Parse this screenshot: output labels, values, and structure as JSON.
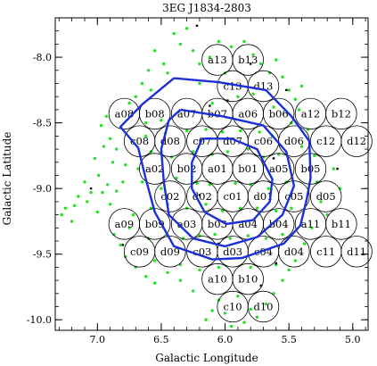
{
  "chart_data": {
    "type": "scatter",
    "title": "3EG J1834-2803",
    "xlabel": "Galactic Longitude",
    "ylabel": "Galactic Latitude",
    "x_reversed": true,
    "xlim": [
      7.33,
      4.88
    ],
    "ylim": [
      -10.08,
      -7.7
    ],
    "xticks": [
      7.0,
      6.5,
      6.0,
      5.5,
      5.0
    ],
    "yticks": [
      -8.0,
      -8.5,
      -9.0,
      -9.5,
      -10.0
    ],
    "xtick_labels": [
      "7.0",
      "6.5",
      "6.0",
      "5.5",
      "5.0"
    ],
    "ytick_labels": [
      "-8.0",
      "-8.5",
      "-9.0",
      "-9.5",
      "-10.0"
    ],
    "grid": false,
    "colors": {
      "fields": "#000000",
      "contours": "#1a2fd6",
      "sources": "#22e022",
      "frame": "#000000"
    },
    "fields": [
      {
        "name": "a13",
        "x": 6.06,
        "y": -8.02
      },
      {
        "name": "b13",
        "x": 5.82,
        "y": -8.02
      },
      {
        "name": "c13",
        "x": 5.94,
        "y": -8.22
      },
      {
        "name": "d13",
        "x": 5.7,
        "y": -8.22
      },
      {
        "name": "a08",
        "x": 6.79,
        "y": -8.43
      },
      {
        "name": "b08",
        "x": 6.55,
        "y": -8.43
      },
      {
        "name": "a07",
        "x": 6.3,
        "y": -8.43
      },
      {
        "name": "b07",
        "x": 6.06,
        "y": -8.43
      },
      {
        "name": "a06",
        "x": 5.82,
        "y": -8.43
      },
      {
        "name": "b06",
        "x": 5.58,
        "y": -8.43
      },
      {
        "name": "a12",
        "x": 5.33,
        "y": -8.43
      },
      {
        "name": "b12",
        "x": 5.09,
        "y": -8.43
      },
      {
        "name": "c08",
        "x": 6.67,
        "y": -8.64
      },
      {
        "name": "d08",
        "x": 6.43,
        "y": -8.64
      },
      {
        "name": "c07",
        "x": 6.18,
        "y": -8.64
      },
      {
        "name": "d07",
        "x": 5.94,
        "y": -8.64
      },
      {
        "name": "c06",
        "x": 5.7,
        "y": -8.64
      },
      {
        "name": "d06",
        "x": 5.46,
        "y": -8.64
      },
      {
        "name": "c12",
        "x": 5.21,
        "y": -8.64
      },
      {
        "name": "d12",
        "x": 4.97,
        "y": -8.64
      },
      {
        "name": "a02",
        "x": 6.55,
        "y": -8.85
      },
      {
        "name": "b02",
        "x": 6.3,
        "y": -8.85
      },
      {
        "name": "a01",
        "x": 6.06,
        "y": -8.85
      },
      {
        "name": "b01",
        "x": 5.82,
        "y": -8.85
      },
      {
        "name": "a05",
        "x": 5.58,
        "y": -8.85
      },
      {
        "name": "b05",
        "x": 5.33,
        "y": -8.85
      },
      {
        "name": "c02",
        "x": 6.43,
        "y": -9.06
      },
      {
        "name": "d02",
        "x": 6.18,
        "y": -9.06
      },
      {
        "name": "c01",
        "x": 5.94,
        "y": -9.06
      },
      {
        "name": "d01",
        "x": 5.7,
        "y": -9.06
      },
      {
        "name": "c05",
        "x": 5.46,
        "y": -9.06
      },
      {
        "name": "d05",
        "x": 5.21,
        "y": -9.06
      },
      {
        "name": "a09",
        "x": 6.79,
        "y": -9.27
      },
      {
        "name": "b09",
        "x": 6.55,
        "y": -9.27
      },
      {
        "name": "a03",
        "x": 6.3,
        "y": -9.27
      },
      {
        "name": "b03",
        "x": 6.06,
        "y": -9.27
      },
      {
        "name": "a04",
        "x": 5.82,
        "y": -9.27
      },
      {
        "name": "b04",
        "x": 5.58,
        "y": -9.27
      },
      {
        "name": "a11",
        "x": 5.33,
        "y": -9.27
      },
      {
        "name": "b11",
        "x": 5.09,
        "y": -9.27
      },
      {
        "name": "c09",
        "x": 6.67,
        "y": -9.48
      },
      {
        "name": "d09",
        "x": 6.43,
        "y": -9.48
      },
      {
        "name": "c03",
        "x": 6.18,
        "y": -9.48
      },
      {
        "name": "d03",
        "x": 5.94,
        "y": -9.48
      },
      {
        "name": "c04",
        "x": 5.7,
        "y": -9.48
      },
      {
        "name": "d04",
        "x": 5.46,
        "y": -9.48
      },
      {
        "name": "c11",
        "x": 5.21,
        "y": -9.48
      },
      {
        "name": "d11",
        "x": 4.97,
        "y": -9.48
      },
      {
        "name": "a10",
        "x": 6.06,
        "y": -9.69
      },
      {
        "name": "b10",
        "x": 5.82,
        "y": -9.69
      },
      {
        "name": "c10",
        "x": 5.94,
        "y": -9.9
      },
      {
        "name": "d10",
        "x": 5.7,
        "y": -9.9
      }
    ],
    "field_radius_deg": 0.121,
    "contours": [
      [
        [
          6.4,
          -8.16
        ],
        [
          6.05,
          -8.19
        ],
        [
          5.68,
          -8.25
        ],
        [
          5.48,
          -8.45
        ],
        [
          5.34,
          -8.64
        ],
        [
          5.33,
          -8.92
        ],
        [
          5.36,
          -9.08
        ],
        [
          5.41,
          -9.28
        ],
        [
          5.54,
          -9.42
        ],
        [
          5.87,
          -9.53
        ],
        [
          6.1,
          -9.54
        ],
        [
          6.4,
          -9.44
        ],
        [
          6.55,
          -9.18
        ],
        [
          6.62,
          -8.93
        ],
        [
          6.68,
          -8.69
        ],
        [
          6.82,
          -8.53
        ],
        [
          6.65,
          -8.36
        ],
        [
          6.4,
          -8.16
        ]
      ],
      [
        [
          6.35,
          -8.4
        ],
        [
          6.02,
          -8.45
        ],
        [
          5.7,
          -8.52
        ],
        [
          5.52,
          -8.72
        ],
        [
          5.46,
          -8.98
        ],
        [
          5.55,
          -9.2
        ],
        [
          5.75,
          -9.37
        ],
        [
          6.0,
          -9.44
        ],
        [
          6.25,
          -9.38
        ],
        [
          6.44,
          -9.2
        ],
        [
          6.48,
          -8.95
        ],
        [
          6.5,
          -8.7
        ],
        [
          6.44,
          -8.48
        ],
        [
          6.35,
          -8.4
        ]
      ],
      [
        [
          6.18,
          -8.62
        ],
        [
          5.95,
          -8.62
        ],
        [
          5.75,
          -8.7
        ],
        [
          5.63,
          -8.93
        ],
        [
          5.65,
          -9.1
        ],
        [
          5.78,
          -9.24
        ],
        [
          5.99,
          -9.27
        ],
        [
          6.16,
          -9.18
        ],
        [
          6.26,
          -9.0
        ],
        [
          6.26,
          -8.8
        ],
        [
          6.18,
          -8.62
        ]
      ]
    ],
    "sources": [
      [
        6.93,
        -8.45
      ],
      [
        6.97,
        -8.52
      ],
      [
        6.9,
        -8.62
      ],
      [
        6.88,
        -8.8
      ],
      [
        6.95,
        -8.68
      ],
      [
        7.02,
        -8.77
      ],
      [
        6.99,
        -8.9
      ],
      [
        7.1,
        -8.95
      ],
      [
        7.05,
        -9.03
      ],
      [
        7.15,
        -9.06
      ],
      [
        7.18,
        -9.13
      ],
      [
        7.25,
        -9.15
      ],
      [
        7.28,
        -9.2
      ],
      [
        7.2,
        -9.25
      ],
      [
        7.08,
        -9.1
      ],
      [
        6.96,
        -9.03
      ],
      [
        6.9,
        -9.12
      ],
      [
        6.85,
        -9.02
      ],
      [
        6.8,
        -8.95
      ],
      [
        6.92,
        -8.97
      ],
      [
        7.0,
        -9.18
      ],
      [
        6.87,
        -9.35
      ],
      [
        6.82,
        -9.43
      ],
      [
        6.78,
        -9.52
      ],
      [
        6.7,
        -9.6
      ],
      [
        6.62,
        -9.67
      ],
      [
        6.55,
        -9.72
      ],
      [
        6.45,
        -9.64
      ],
      [
        6.35,
        -9.7
      ],
      [
        6.25,
        -9.78
      ],
      [
        6.2,
        -9.62
      ],
      [
        6.1,
        -9.93
      ],
      [
        6.0,
        -9.95
      ],
      [
        5.85,
        -10.02
      ],
      [
        5.75,
        -9.98
      ],
      [
        5.68,
        -9.88
      ],
      [
        5.62,
        -9.8
      ],
      [
        5.55,
        -9.7
      ],
      [
        5.5,
        -9.62
      ],
      [
        5.9,
        -9.82
      ],
      [
        5.8,
        -9.92
      ],
      [
        6.05,
        -9.85
      ],
      [
        6.15,
        -10.0
      ],
      [
        5.95,
        -10.05
      ],
      [
        6.55,
        -7.95
      ],
      [
        6.48,
        -8.05
      ],
      [
        6.4,
        -7.82
      ],
      [
        6.35,
        -7.9
      ],
      [
        6.3,
        -7.78
      ],
      [
        6.25,
        -7.95
      ],
      [
        6.2,
        -8.05
      ],
      [
        6.05,
        -7.88
      ],
      [
        5.95,
        -7.92
      ],
      [
        5.85,
        -7.88
      ],
      [
        5.78,
        -7.98
      ],
      [
        5.72,
        -8.05
      ],
      [
        5.65,
        -8.12
      ],
      [
        5.6,
        -8.02
      ],
      [
        5.55,
        -8.15
      ],
      [
        5.5,
        -8.25
      ],
      [
        5.45,
        -8.32
      ],
      [
        5.4,
        -8.22
      ],
      [
        6.6,
        -8.1
      ],
      [
        6.65,
        -8.2
      ],
      [
        6.7,
        -8.3
      ],
      [
        6.75,
        -8.35
      ],
      [
        6.58,
        -8.25
      ],
      [
        6.45,
        -8.12
      ],
      [
        6.12,
        -8.0
      ],
      [
        6.0,
        -8.12
      ],
      [
        6.62,
        -8.5
      ],
      [
        6.47,
        -8.58
      ],
      [
        6.3,
        -8.56
      ],
      [
        6.15,
        -8.55
      ],
      [
        6.02,
        -8.57
      ],
      [
        5.88,
        -8.56
      ],
      [
        5.73,
        -8.57
      ],
      [
        5.63,
        -8.6
      ],
      [
        6.58,
        -8.72
      ],
      [
        6.42,
        -8.76
      ],
      [
        6.25,
        -8.72
      ],
      [
        6.1,
        -8.74
      ],
      [
        5.98,
        -8.72
      ],
      [
        5.82,
        -8.7
      ],
      [
        5.7,
        -8.76
      ],
      [
        5.58,
        -8.74
      ],
      [
        6.65,
        -8.95
      ],
      [
        6.5,
        -9.0
      ],
      [
        6.38,
        -8.92
      ],
      [
        6.22,
        -8.96
      ],
      [
        6.12,
        -8.97
      ],
      [
        5.92,
        -8.96
      ],
      [
        5.8,
        -8.97
      ],
      [
        5.66,
        -9.0
      ],
      [
        5.52,
        -8.95
      ],
      [
        6.58,
        -9.15
      ],
      [
        6.45,
        -9.12
      ],
      [
        6.3,
        -9.15
      ],
      [
        6.15,
        -9.12
      ],
      [
        6.02,
        -9.17
      ],
      [
        5.88,
        -9.15
      ],
      [
        5.75,
        -9.15
      ],
      [
        5.6,
        -9.17
      ],
      [
        5.48,
        -9.15
      ],
      [
        6.6,
        -9.38
      ],
      [
        6.45,
        -9.36
      ],
      [
        6.33,
        -9.38
      ],
      [
        6.2,
        -9.36
      ],
      [
        6.08,
        -9.35
      ],
      [
        5.96,
        -9.38
      ],
      [
        5.82,
        -9.36
      ],
      [
        5.68,
        -9.38
      ],
      [
        5.55,
        -9.35
      ],
      [
        6.55,
        -9.55
      ],
      [
        6.35,
        -9.58
      ],
      [
        6.05,
        -9.6
      ],
      [
        5.8,
        -9.6
      ],
      [
        5.6,
        -9.58
      ],
      [
        5.45,
        -9.55
      ],
      [
        5.35,
        -8.55
      ],
      [
        5.3,
        -8.75
      ],
      [
        5.28,
        -8.95
      ],
      [
        5.25,
        -9.1
      ],
      [
        5.32,
        -9.3
      ],
      [
        5.38,
        -9.42
      ],
      [
        5.2,
        -9.2
      ],
      [
        5.4,
        -8.68
      ],
      [
        5.15,
        -8.85
      ],
      [
        5.1,
        -9.0
      ],
      [
        5.42,
        -8.4
      ],
      [
        5.48,
        -8.5
      ],
      [
        6.85,
        -8.7
      ],
      [
        6.78,
        -8.82
      ],
      [
        6.72,
        -9.2
      ],
      [
        6.75,
        -9.3
      ],
      [
        6.68,
        -8.85
      ],
      [
        6.62,
        -8.6
      ],
      [
        6.5,
        -8.48
      ],
      [
        6.2,
        -8.2
      ],
      [
        6.1,
        -8.35
      ],
      [
        5.9,
        -8.3
      ],
      [
        5.78,
        -8.28
      ],
      [
        5.62,
        -8.38
      ]
    ],
    "black_points": [
      [
        6.22,
        -7.76
      ],
      [
        5.8,
        -8.05
      ],
      [
        5.98,
        -8.33
      ],
      [
        5.52,
        -8.25
      ],
      [
        6.12,
        -8.37
      ],
      [
        5.62,
        -8.77
      ],
      [
        5.12,
        -8.85
      ],
      [
        7.05,
        -9.0
      ],
      [
        6.2,
        -9.05
      ],
      [
        6.8,
        -9.43
      ],
      [
        6.05,
        -9.42
      ],
      [
        5.6,
        -9.57
      ],
      [
        5.72,
        -9.74
      ]
    ]
  }
}
